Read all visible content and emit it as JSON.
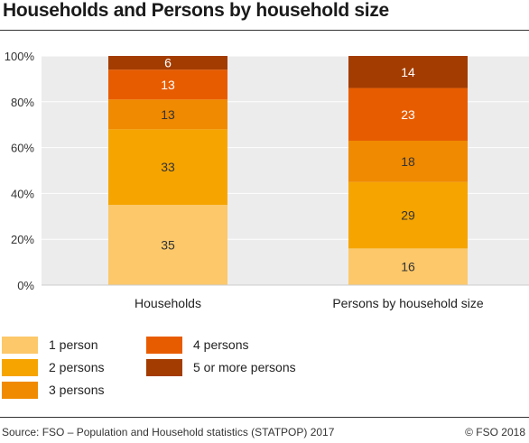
{
  "title": "Households and Persons by household size",
  "chart_data": {
    "type": "stacked-bar",
    "categories": [
      "Households",
      "Persons by household size"
    ],
    "series": [
      {
        "name": "1 person",
        "color": "#fcc86a",
        "values": [
          35,
          16
        ]
      },
      {
        "name": "2 persons",
        "color": "#f6a500",
        "values": [
          33,
          29
        ]
      },
      {
        "name": "3 persons",
        "color": "#f08a00",
        "values": [
          13,
          18
        ]
      },
      {
        "name": "4 persons",
        "color": "#e85c00",
        "values": [
          13,
          23
        ]
      },
      {
        "name": "5 or more persons",
        "color": "#a33c00",
        "values": [
          6,
          14
        ]
      }
    ],
    "yticks": [
      "0%",
      "20%",
      "40%",
      "60%",
      "80%",
      "100%"
    ],
    "ylim": [
      0,
      100
    ],
    "grid": true,
    "legend_position": "bottom"
  },
  "footer": {
    "source": "Source: FSO – Population and Household statistics (STATPOP) 2017",
    "copyright": "© FSO 2018"
  }
}
